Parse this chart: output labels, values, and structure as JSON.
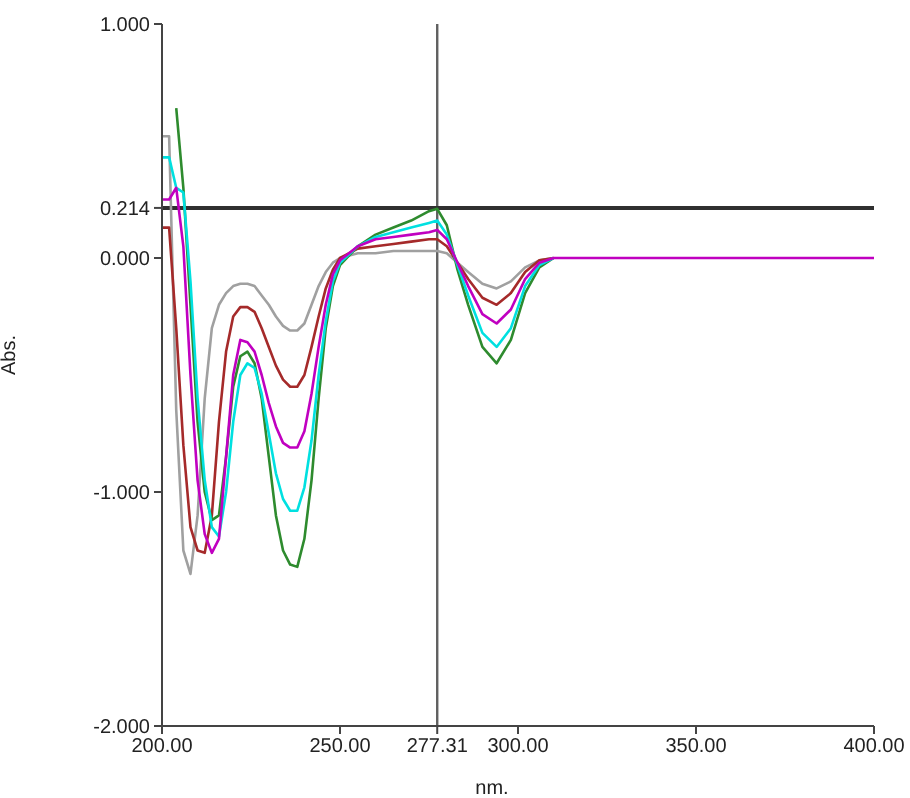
{
  "chart_data": {
    "type": "line",
    "xlabel": "nm.",
    "ylabel": "Abs.",
    "x": [
      200,
      202,
      204,
      206,
      208,
      210,
      212,
      214,
      216,
      218,
      220,
      222,
      224,
      226,
      228,
      230,
      232,
      234,
      236,
      238,
      240,
      242,
      244,
      246,
      248,
      250,
      255,
      260,
      265,
      270,
      275,
      277.31,
      280,
      283,
      286,
      290,
      294,
      298,
      302,
      306,
      310,
      320,
      350,
      400
    ],
    "series": [
      {
        "color": "#a0a0a0",
        "values": [
          0.52,
          0.52,
          -0.65,
          -1.25,
          -1.35,
          -1.1,
          -0.6,
          -0.3,
          -0.2,
          -0.15,
          -0.12,
          -0.11,
          -0.11,
          -0.12,
          -0.16,
          -0.2,
          -0.25,
          -0.29,
          -0.31,
          -0.31,
          -0.28,
          -0.2,
          -0.12,
          -0.06,
          -0.02,
          0,
          0.02,
          0.02,
          0.03,
          0.03,
          0.03,
          0.03,
          0.02,
          -0.02,
          -0.06,
          -0.11,
          -0.13,
          -0.1,
          -0.04,
          -0.01,
          0,
          null,
          null,
          null
        ]
      },
      {
        "color": "#a52a2a",
        "values": [
          0.13,
          0.13,
          -0.3,
          -0.8,
          -1.15,
          -1.25,
          -1.26,
          -1.1,
          -0.7,
          -0.4,
          -0.25,
          -0.21,
          -0.21,
          -0.23,
          -0.3,
          -0.38,
          -0.46,
          -0.52,
          -0.55,
          -0.55,
          -0.5,
          -0.38,
          -0.25,
          -0.13,
          -0.05,
          0,
          0.04,
          0.05,
          0.06,
          0.07,
          0.08,
          0.08,
          0.05,
          -0.02,
          -0.09,
          -0.17,
          -0.2,
          -0.15,
          -0.06,
          -0.01,
          0,
          null,
          null,
          null
        ]
      },
      {
        "color": "#2e8b2e",
        "values": [
          null,
          null,
          0.64,
          0.3,
          -0.2,
          -0.7,
          -1.0,
          -1.12,
          -1.1,
          -0.85,
          -0.55,
          -0.42,
          -0.4,
          -0.45,
          -0.6,
          -0.85,
          -1.1,
          -1.25,
          -1.31,
          -1.32,
          -1.2,
          -0.95,
          -0.6,
          -0.3,
          -0.12,
          -0.03,
          0.05,
          0.1,
          0.13,
          0.16,
          0.2,
          0.21,
          0.14,
          -0.05,
          -0.2,
          -0.38,
          -0.45,
          -0.35,
          -0.15,
          -0.04,
          0,
          null,
          null,
          null
        ]
      },
      {
        "color": "#00e0e0",
        "values": [
          0.43,
          0.43,
          0.3,
          0.28,
          -0.1,
          -0.6,
          -0.95,
          -1.15,
          -1.19,
          -1.0,
          -0.7,
          -0.5,
          -0.45,
          -0.47,
          -0.58,
          -0.75,
          -0.92,
          -1.03,
          -1.08,
          -1.08,
          -0.98,
          -0.78,
          -0.5,
          -0.27,
          -0.1,
          -0.02,
          0.05,
          0.09,
          0.11,
          0.13,
          0.15,
          0.16,
          0.1,
          -0.03,
          -0.16,
          -0.32,
          -0.38,
          -0.3,
          -0.12,
          -0.03,
          0,
          null,
          null,
          null
        ]
      },
      {
        "color": "#c000c0",
        "values": [
          0.25,
          0.25,
          0.3,
          0.05,
          -0.5,
          -0.95,
          -1.18,
          -1.26,
          -1.2,
          -0.85,
          -0.5,
          -0.35,
          -0.36,
          -0.4,
          -0.5,
          -0.62,
          -0.72,
          -0.79,
          -0.81,
          -0.81,
          -0.74,
          -0.58,
          -0.38,
          -0.2,
          -0.07,
          -0.01,
          0.05,
          0.08,
          0.09,
          0.1,
          0.11,
          0.12,
          0.08,
          -0.02,
          -0.12,
          -0.24,
          -0.28,
          -0.22,
          -0.09,
          -0.02,
          0,
          0,
          0,
          0
        ]
      }
    ],
    "xlim": [
      200,
      400
    ],
    "xticks": [
      {
        "value": 200,
        "label": "200.00"
      },
      {
        "value": 250,
        "label": "250.00"
      },
      {
        "value": 277.31,
        "label": "277.31"
      },
      {
        "value": 300,
        "label": "300.00"
      },
      {
        "value": 350,
        "label": "350.00"
      },
      {
        "value": 400,
        "label": "400.00"
      }
    ],
    "ylim": [
      -2,
      1
    ],
    "yticks": [
      {
        "value": -2,
        "label": "-2.000"
      },
      {
        "value": -1,
        "label": "-1.000"
      },
      {
        "value": 0,
        "label": "0.000"
      },
      {
        "value": 0.214,
        "label": "0.214"
      },
      {
        "value": 1,
        "label": "1.000"
      }
    ],
    "ref_lines": [
      {
        "axis": "x",
        "value": 277.31,
        "color": "#606060"
      },
      {
        "axis": "y",
        "value": 0.214,
        "color": "#303030"
      }
    ],
    "grid": false,
    "marker": "none",
    "line_style": "solid"
  }
}
